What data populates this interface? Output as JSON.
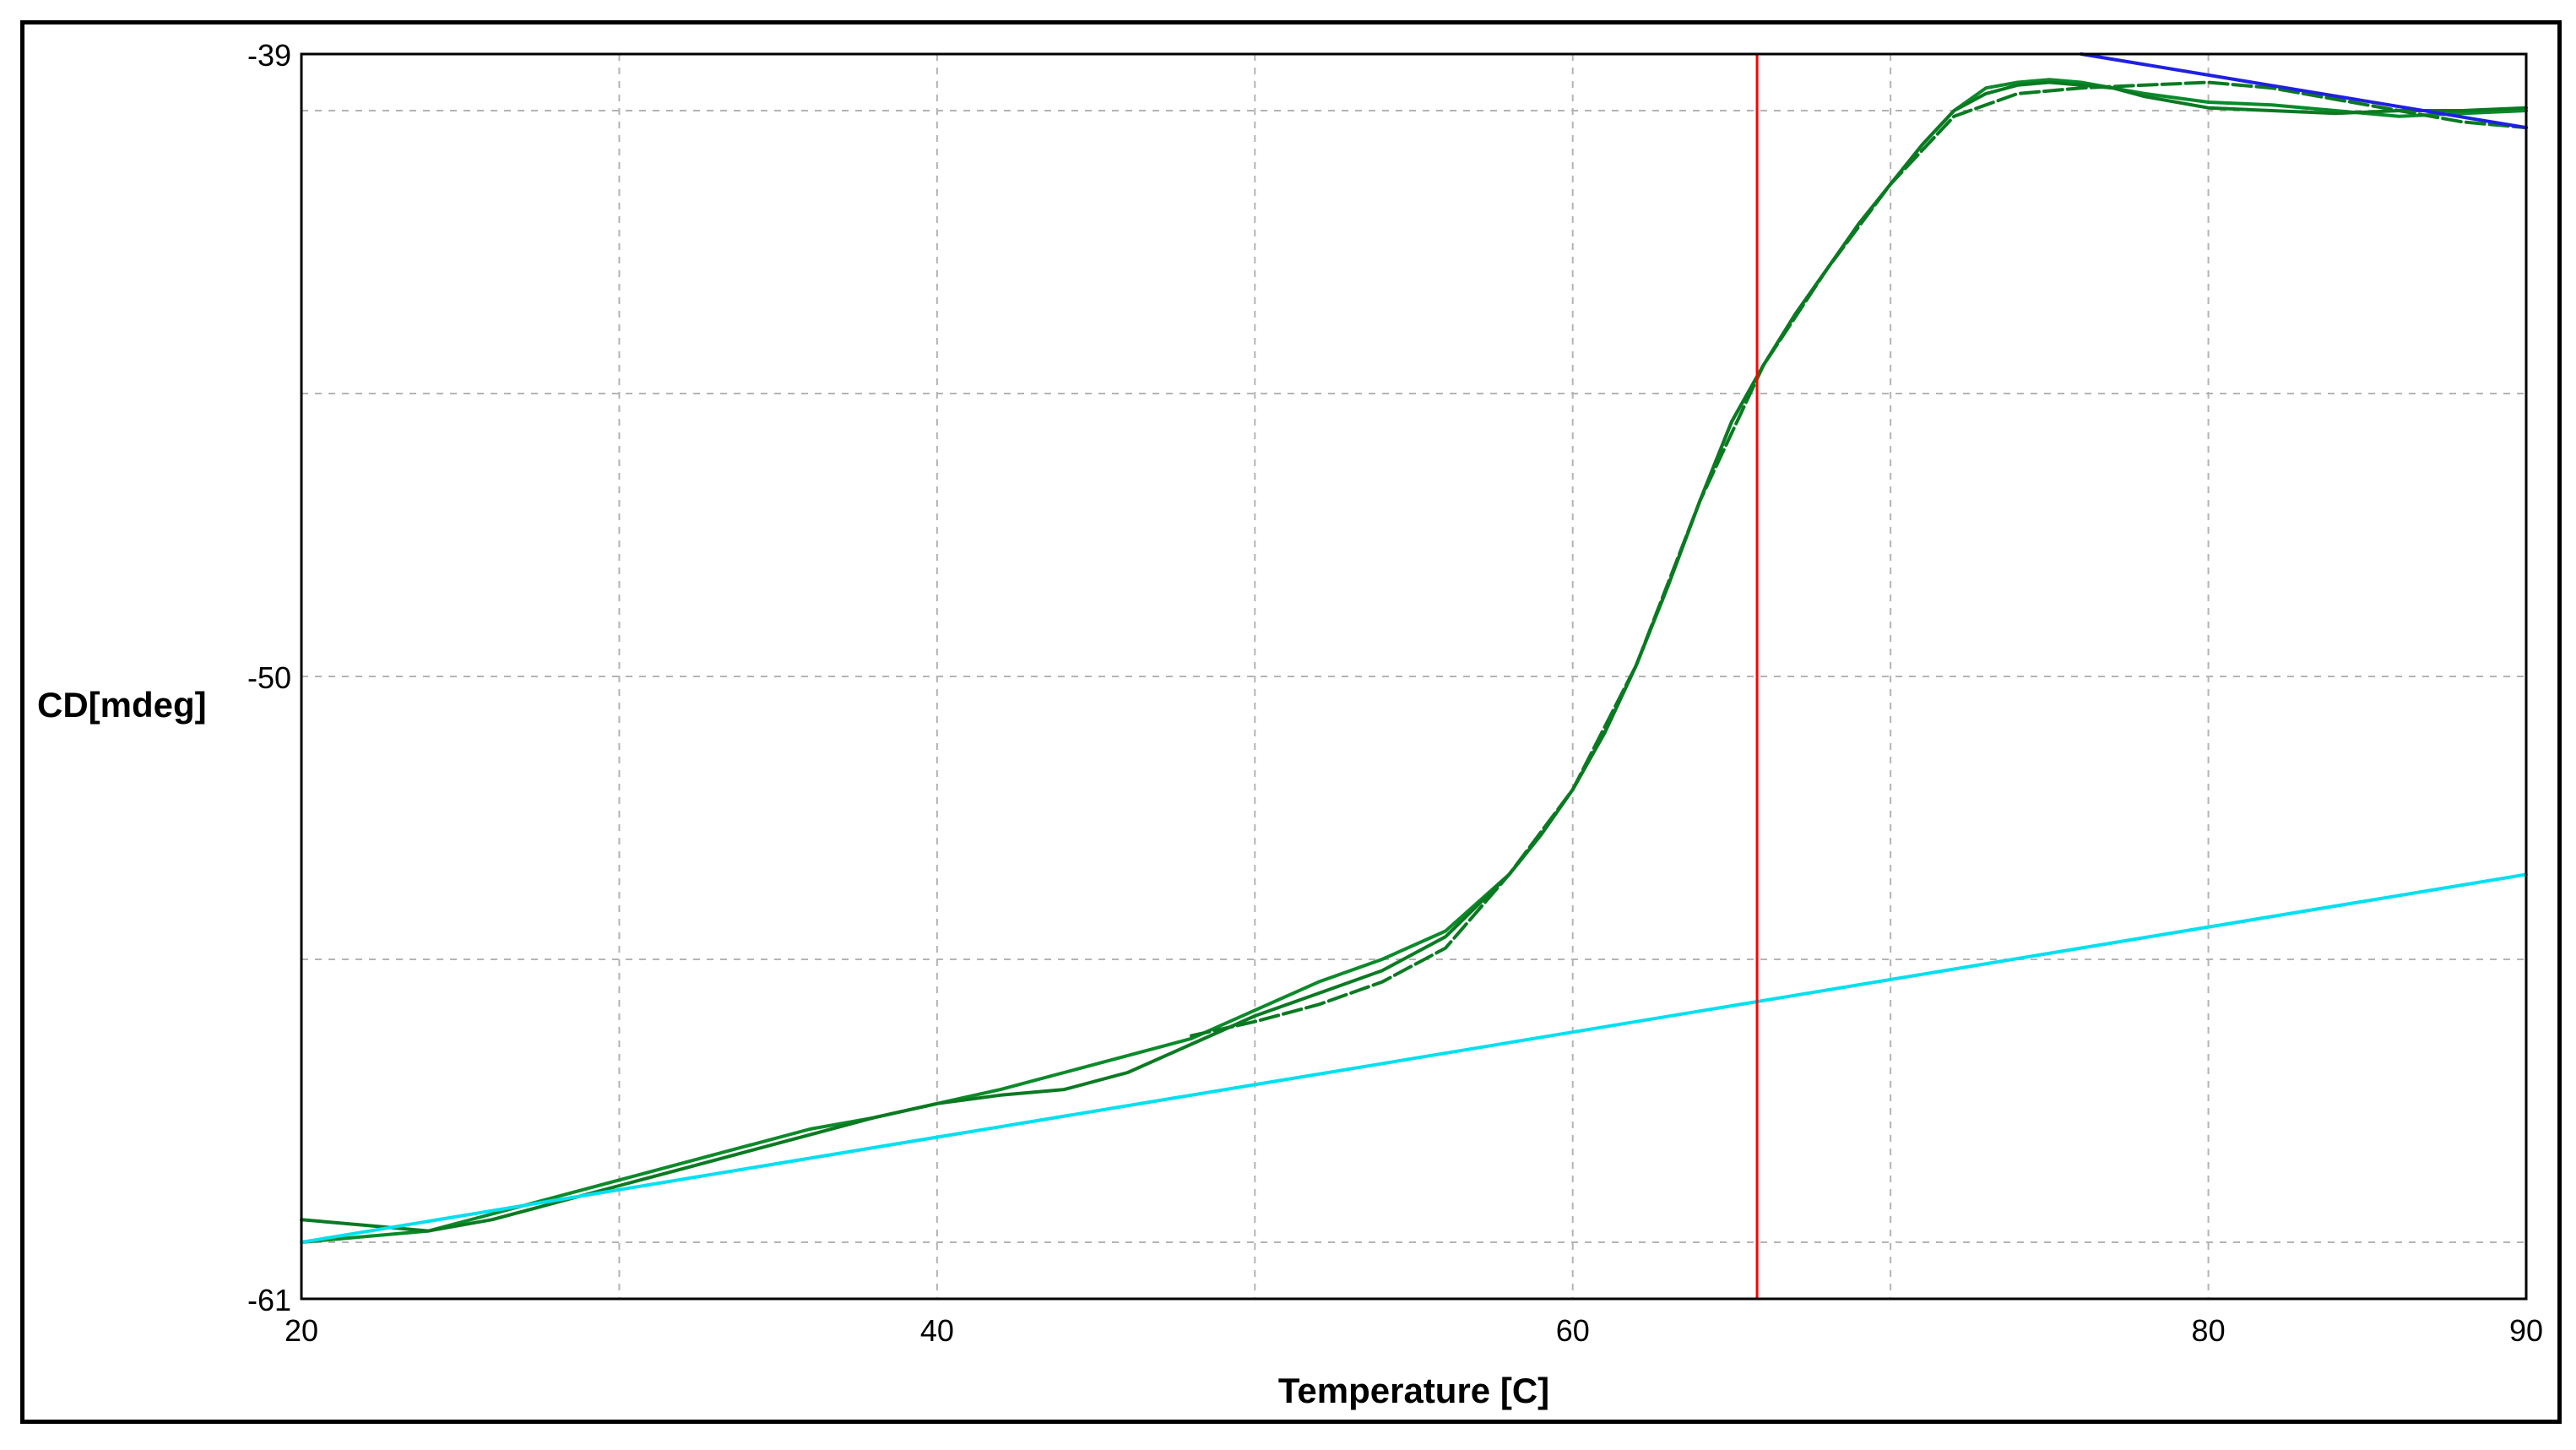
{
  "chart_data": {
    "type": "line",
    "title": "",
    "xlabel": "Temperature [C]",
    "ylabel": "CD[mdeg]",
    "xlim": [
      20,
      90
    ],
    "ylim": [
      -61,
      -39
    ],
    "x_ticks": [
      20,
      40,
      60,
      80,
      90
    ],
    "x_grid": [
      30,
      40,
      50,
      60,
      70,
      80
    ],
    "y_ticks": [
      -39,
      -50,
      -61
    ],
    "y_grid": [
      -40,
      -45,
      -50,
      -55,
      -60
    ],
    "grid": true,
    "legend": "none",
    "colors": {
      "fit": "#0a8a2a",
      "data": "#0a7a22",
      "baseline_low": "#00e0f0",
      "baseline_high": "#2020e0",
      "marker": "#ff0000",
      "grid": "#b4b4b4"
    },
    "vertical_marker": {
      "x": 65.8
    },
    "series": [
      {
        "style": "solid",
        "color": "#0a8a2a",
        "points": [
          [
            20,
            -60.0
          ],
          [
            22,
            -59.9
          ],
          [
            24,
            -59.8
          ],
          [
            26,
            -59.5
          ],
          [
            28,
            -59.2
          ],
          [
            30,
            -58.9
          ],
          [
            32,
            -58.6
          ],
          [
            34,
            -58.3
          ],
          [
            36,
            -58.0
          ],
          [
            38,
            -57.8
          ],
          [
            40,
            -57.55
          ],
          [
            42,
            -57.3
          ],
          [
            44,
            -57.0
          ],
          [
            46,
            -56.7
          ],
          [
            48,
            -56.4
          ],
          [
            50,
            -55.9
          ],
          [
            52,
            -55.4
          ],
          [
            54,
            -55.0
          ],
          [
            56,
            -54.5
          ],
          [
            58,
            -53.5
          ],
          [
            59,
            -52.8
          ],
          [
            60,
            -52.0
          ],
          [
            61,
            -51.0
          ],
          [
            62,
            -49.8
          ],
          [
            63,
            -48.4
          ],
          [
            64,
            -46.9
          ],
          [
            65,
            -45.5
          ],
          [
            66,
            -44.5
          ],
          [
            67,
            -43.6
          ],
          [
            68,
            -42.8
          ],
          [
            69,
            -42.0
          ],
          [
            70,
            -41.3
          ],
          [
            71,
            -40.6
          ],
          [
            72,
            -40.0
          ],
          [
            73,
            -39.6
          ],
          [
            74,
            -39.5
          ],
          [
            75,
            -39.45
          ],
          [
            76,
            -39.5
          ],
          [
            77,
            -39.6
          ],
          [
            78,
            -39.7
          ],
          [
            80,
            -39.85
          ],
          [
            82,
            -39.9
          ],
          [
            84,
            -40.0
          ],
          [
            86,
            -40.1
          ],
          [
            88,
            -40.05
          ],
          [
            90,
            -40.0
          ]
        ]
      },
      {
        "style": "solid",
        "color": "#0a7a22",
        "points": [
          [
            20,
            -59.6
          ],
          [
            22,
            -59.7
          ],
          [
            24,
            -59.8
          ],
          [
            26,
            -59.6
          ],
          [
            28,
            -59.3
          ],
          [
            30,
            -59.0
          ],
          [
            32,
            -58.7
          ],
          [
            34,
            -58.4
          ],
          [
            36,
            -58.1
          ],
          [
            38,
            -57.8
          ],
          [
            40,
            -57.55
          ],
          [
            42,
            -57.4
          ],
          [
            44,
            -57.3
          ],
          [
            46,
            -57.0
          ],
          [
            48,
            -56.5
          ],
          [
            50,
            -56.0
          ],
          [
            52,
            -55.6
          ],
          [
            54,
            -55.2
          ],
          [
            56,
            -54.6
          ],
          [
            58,
            -53.5
          ],
          [
            59,
            -52.8
          ],
          [
            60,
            -52.0
          ],
          [
            61,
            -51.0
          ],
          [
            62,
            -49.8
          ],
          [
            63,
            -48.4
          ],
          [
            64,
            -46.9
          ],
          [
            65,
            -45.5
          ],
          [
            66,
            -44.5
          ],
          [
            67,
            -43.6
          ],
          [
            68,
            -42.8
          ],
          [
            69,
            -42.0
          ],
          [
            70,
            -41.3
          ],
          [
            71,
            -40.6
          ],
          [
            72,
            -40.0
          ],
          [
            73,
            -39.7
          ],
          [
            74,
            -39.55
          ],
          [
            75,
            -39.5
          ],
          [
            76,
            -39.55
          ],
          [
            77,
            -39.6
          ],
          [
            78,
            -39.75
          ],
          [
            80,
            -39.95
          ],
          [
            82,
            -40.0
          ],
          [
            84,
            -40.05
          ],
          [
            86,
            -40.0
          ],
          [
            88,
            -40.0
          ],
          [
            90,
            -39.95
          ]
        ]
      },
      {
        "style": "dashed",
        "color": "#0a7a22",
        "points": [
          [
            48,
            -56.35
          ],
          [
            50,
            -56.1
          ],
          [
            52,
            -55.8
          ],
          [
            54,
            -55.4
          ],
          [
            56,
            -54.8
          ],
          [
            58,
            -53.5
          ],
          [
            60,
            -52.0
          ],
          [
            62,
            -49.8
          ],
          [
            64,
            -46.9
          ],
          [
            66,
            -44.5
          ],
          [
            68,
            -42.8
          ],
          [
            70,
            -41.3
          ],
          [
            72,
            -40.1
          ],
          [
            74,
            -39.7
          ],
          [
            76,
            -39.6
          ],
          [
            78,
            -39.55
          ],
          [
            80,
            -39.5
          ],
          [
            82,
            -39.6
          ],
          [
            84,
            -39.8
          ],
          [
            86,
            -40.0
          ],
          [
            88,
            -40.2
          ],
          [
            90,
            -40.3
          ]
        ]
      },
      {
        "style": "solid",
        "color": "#00e0f0",
        "points": [
          [
            20,
            -60.0
          ],
          [
            90,
            -53.5
          ]
        ]
      },
      {
        "style": "solid",
        "color": "#2020e0",
        "points": [
          [
            76,
            -39.0
          ],
          [
            90,
            -40.3
          ]
        ]
      }
    ]
  }
}
